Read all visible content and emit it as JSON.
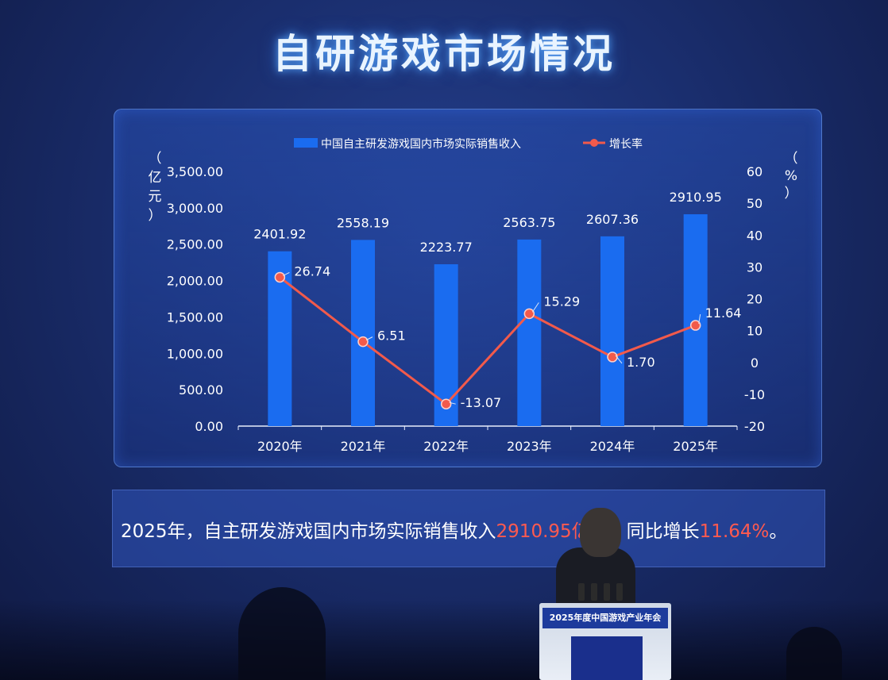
{
  "title": "自研游戏市场情况",
  "chart_data": {
    "type": "bar+line",
    "categories": [
      "2020年",
      "2021年",
      "2022年",
      "2023年",
      "2024年",
      "2025年"
    ],
    "series": [
      {
        "name": "中国自主研发游戏国内市场实际销售收入",
        "type": "bar",
        "axis": "left",
        "color": "#1a6cf0",
        "values": [
          2401.92,
          2558.19,
          2223.77,
          2563.75,
          2607.36,
          2910.95
        ],
        "labels": [
          "2401.92",
          "2558.19",
          "2223.77",
          "2563.75",
          "2607.36",
          "2910.95"
        ]
      },
      {
        "name": "增长率",
        "type": "line",
        "axis": "right",
        "color": "#f25a4b",
        "values": [
          26.74,
          6.51,
          -13.07,
          15.29,
          1.7,
          11.64
        ],
        "labels": [
          "26.74",
          "6.51",
          "-13.07",
          "15.29",
          "1.70",
          "11.64"
        ]
      }
    ],
    "y_left": {
      "label": "（亿元）",
      "range": [
        0,
        3500
      ],
      "ticks": [
        "3,500.00",
        "3,000.00",
        "2,500.00",
        "2,000.00",
        "1,500.00",
        "1,000.00",
        "500.00",
        "0.00"
      ]
    },
    "y_right": {
      "label": "（%）",
      "range": [
        -20,
        60
      ],
      "ticks": [
        "60",
        "50",
        "40",
        "30",
        "20",
        "10",
        "0",
        "-10",
        "-20"
      ]
    },
    "legend_position": "top-center",
    "grid": false
  },
  "summary": {
    "prefix": "2025年，自主研发游戏国内市场实际销售收入",
    "revenue": "2910.95亿",
    "mid": "元，同比增长",
    "growth": "11.64%",
    "suffix": "。"
  },
  "podium_text": "2025年度中国游戏产业年会"
}
